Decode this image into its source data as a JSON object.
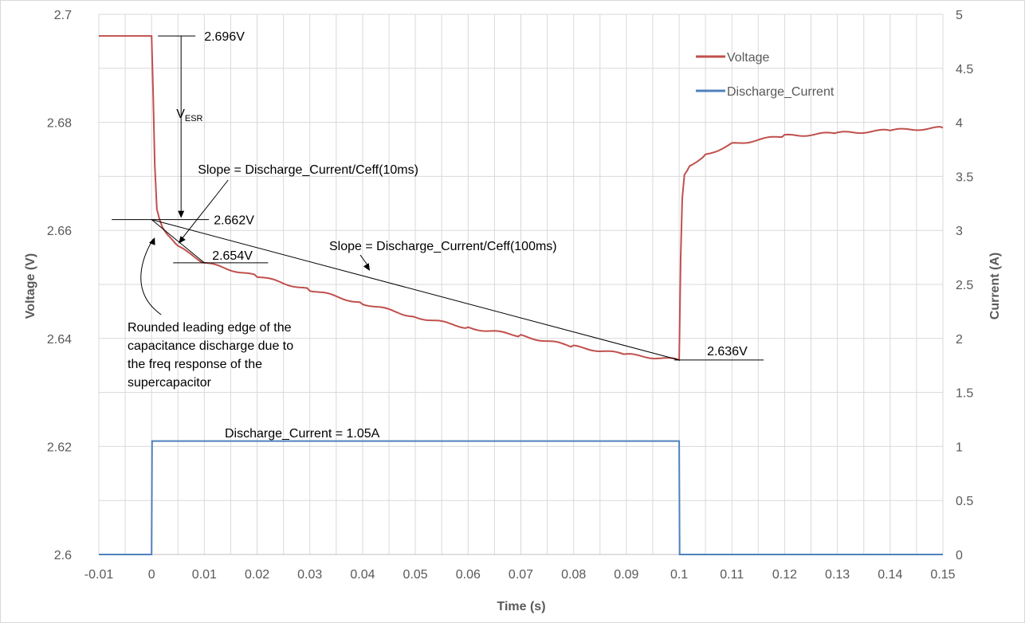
{
  "chart_data": {
    "type": "line",
    "xlabel": "Time (s)",
    "ylabel_left": "Voltage (V)",
    "ylabel_right": "Current (A)",
    "xlim": [
      -0.01,
      0.15
    ],
    "ylim_left": [
      2.6,
      2.7
    ],
    "ylim_right": [
      0,
      5
    ],
    "grid": true,
    "legend_position": "top-right",
    "x_ticks": [
      "-0.01",
      "0",
      "0.01",
      "0.02",
      "0.03",
      "0.04",
      "0.05",
      "0.06",
      "0.07",
      "0.08",
      "0.09",
      "0.1",
      "0.11",
      "0.12",
      "0.13",
      "0.14",
      "0.15"
    ],
    "y_left_ticks": [
      "2.6",
      "2.62",
      "2.64",
      "2.66",
      "2.68",
      "2.7"
    ],
    "y_right_ticks": [
      "0",
      "0.5",
      "1",
      "1.5",
      "2",
      "2.5",
      "3",
      "3.5",
      "4",
      "4.5",
      "5"
    ],
    "colors": {
      "voltage": "#c0504d",
      "current": "#4f81bd"
    },
    "series": [
      {
        "name": "Voltage",
        "axis": "left",
        "x": [
          -0.01,
          0.0,
          0.0003,
          0.0006,
          0.001,
          0.0015,
          0.002,
          0.003,
          0.005,
          0.01,
          0.02,
          0.03,
          0.04,
          0.05,
          0.06,
          0.07,
          0.08,
          0.09,
          0.1,
          0.1003,
          0.1006,
          0.101,
          0.102,
          0.105,
          0.11,
          0.12,
          0.13,
          0.14,
          0.15
        ],
        "values": [
          2.696,
          2.696,
          2.685,
          2.672,
          2.664,
          2.662,
          2.6605,
          2.659,
          2.657,
          2.654,
          2.6515,
          2.649,
          2.6465,
          2.644,
          2.642,
          2.6405,
          2.6385,
          2.637,
          2.636,
          2.655,
          2.666,
          2.6705,
          2.672,
          2.674,
          2.676,
          2.6775,
          2.678,
          2.6785,
          2.679
        ]
      },
      {
        "name": "Discharge_Current",
        "axis": "right",
        "x": [
          -0.01,
          0.0,
          0.0001,
          0.1,
          0.1001,
          0.15
        ],
        "values": [
          0,
          0,
          1.05,
          1.05,
          0,
          0
        ]
      }
    ],
    "annotations": {
      "v_start": "2.696V",
      "vesr_main": "V",
      "vesr_sub": "ESR",
      "v_after_esr": "2.662V",
      "v_10ms": "2.654V",
      "v_end": "2.636V",
      "slope_10ms": "Slope = Discharge_Current/Ceff(10ms)",
      "slope_100ms": "Slope = Discharge_Current/Ceff(100ms)",
      "rounded_edge_lines": [
        "Rounded leading edge of the",
        "capacitance discharge due to",
        "the freq response of the",
        "supercapacitor"
      ],
      "current_label": "Discharge_Current = 1.05A"
    }
  }
}
